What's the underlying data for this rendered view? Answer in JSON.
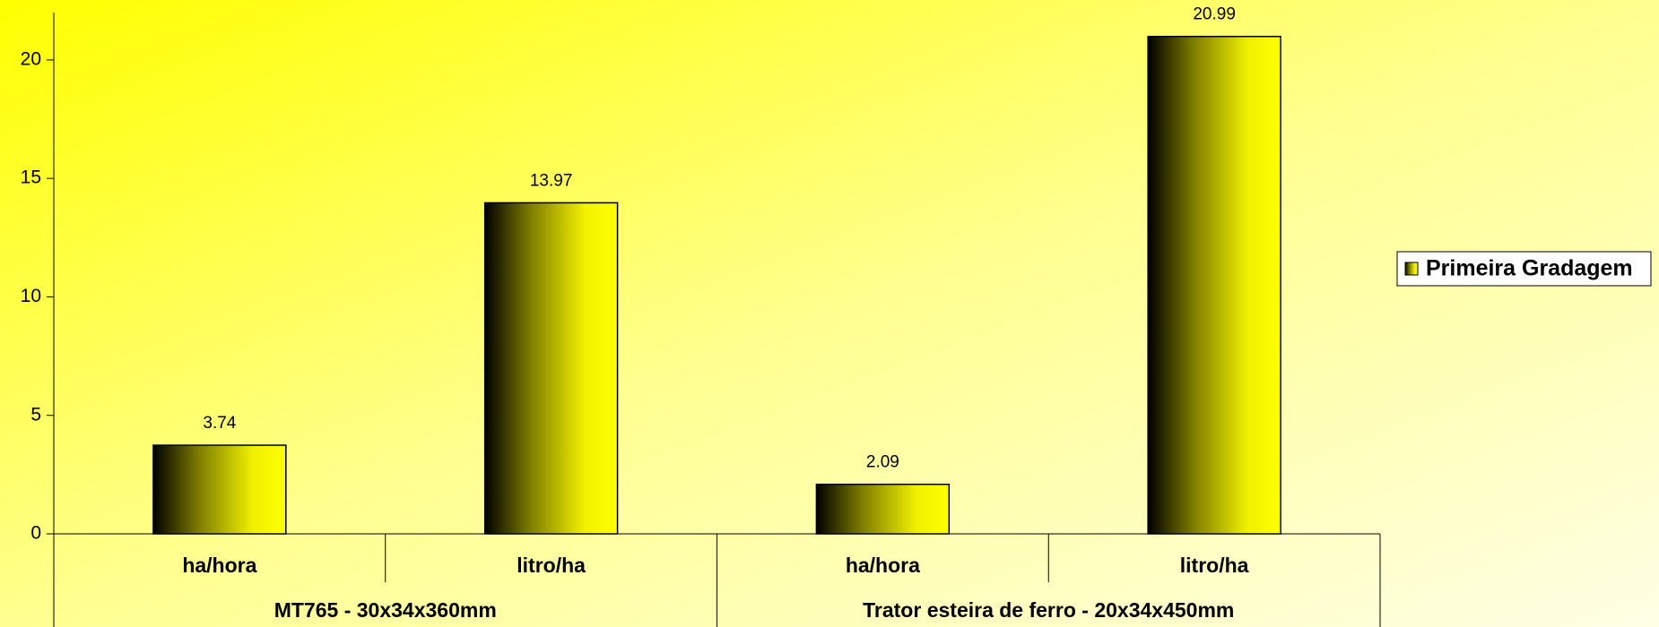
{
  "chart_data": {
    "type": "bar",
    "categories": [
      "ha/hora",
      "litro/ha",
      "ha/hora",
      "litro/ha"
    ],
    "groups": [
      "MT765 - 30x34x360mm",
      "Trator esteira de ferro - 20x34x450mm"
    ],
    "series": [
      {
        "name": "Primeira Gradagem",
        "color": "#ffff00",
        "values": [
          3.74,
          13.97,
          2.09,
          20.99
        ]
      }
    ],
    "ylim": [
      0,
      22
    ],
    "yticks": [
      0,
      5,
      10,
      15,
      20
    ],
    "grid": false,
    "legend": "right"
  }
}
